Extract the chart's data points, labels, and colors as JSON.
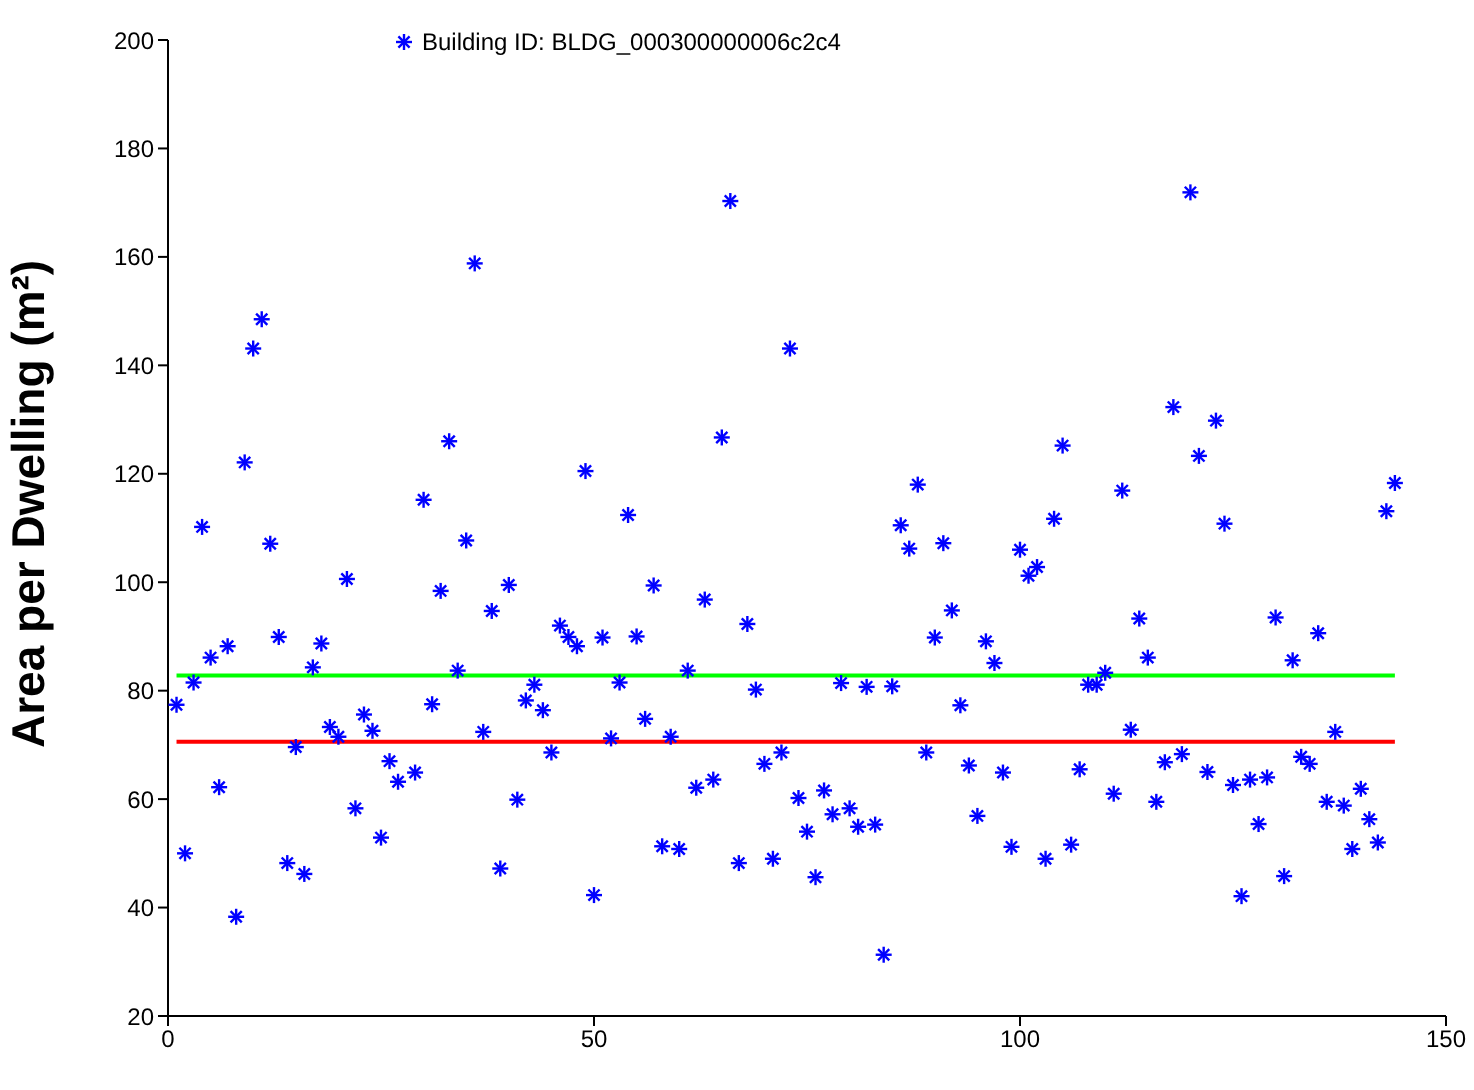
{
  "chart_data": {
    "type": "scatter",
    "ylabel": "Area per Dwelling (m²)",
    "xlim": [
      0,
      150
    ],
    "xticks": [
      0,
      50,
      100,
      150
    ],
    "ylim": [
      20,
      200
    ],
    "yticks": [
      20,
      40,
      60,
      80,
      100,
      120,
      140,
      160,
      180,
      200
    ],
    "grid": false,
    "legend": "top",
    "marker": "cross",
    "x": [
      1,
      2,
      3,
      4,
      5,
      6,
      7,
      8,
      9,
      10,
      11,
      12,
      13,
      14,
      15,
      16,
      17,
      18,
      19,
      20,
      21,
      22,
      23,
      24,
      25,
      26,
      27,
      28,
      29,
      30,
      31,
      32,
      33,
      34,
      35,
      36,
      37,
      38,
      39,
      40,
      41,
      42,
      43,
      44,
      45,
      46,
      47,
      48,
      49,
      50,
      51,
      52,
      53,
      54,
      55,
      56,
      57,
      58,
      59,
      60,
      61,
      62,
      63,
      64,
      65,
      66,
      67,
      68,
      69,
      70,
      71,
      72,
      73,
      74,
      75,
      76,
      77,
      78,
      79,
      80,
      81,
      82,
      83,
      84,
      85,
      86,
      87,
      88,
      89,
      90,
      91,
      92,
      93,
      94,
      95,
      96,
      97,
      98,
      99,
      100,
      101,
      102,
      103,
      104,
      105,
      106,
      107,
      108,
      109,
      110,
      111,
      112,
      113,
      114,
      115,
      116,
      117,
      118,
      119,
      120,
      121,
      122,
      123,
      124,
      125,
      126,
      127,
      128,
      129,
      130,
      131,
      132,
      133,
      134,
      135,
      136,
      137,
      138,
      139,
      140,
      141,
      142,
      143,
      144
    ],
    "series": [
      {
        "name": "Building ID: BLDG_000300000006c2c4",
        "color": "#0000ff",
        "values": [
          77.4,
          50.0,
          81.5,
          110.2,
          86.1,
          62.2,
          88.2,
          38.3,
          122.1,
          143.1,
          148.5,
          107.1,
          89.9,
          48.2,
          69.6,
          46.2,
          84.3,
          88.7,
          73.3,
          71.5,
          100.6,
          58.3,
          75.6,
          72.6,
          52.9,
          67.0,
          63.2,
          null,
          64.9,
          115.2,
          77.5,
          98.4,
          126.0,
          83.7,
          107.7,
          158.8,
          72.4,
          94.7,
          47.2,
          99.5,
          59.9,
          78.2,
          81.1,
          76.4,
          68.6,
          92.0,
          89.9,
          88.2,
          120.5,
          42.3,
          89.8,
          71.2,
          81.5,
          112.4,
          90.0,
          74.8,
          99.4,
          51.3,
          71.5,
          50.8,
          83.7,
          62.1,
          96.8,
          63.6,
          126.7,
          170.3,
          48.2,
          92.3,
          80.2,
          66.5,
          49.0,
          68.6,
          143.1,
          60.2,
          54.0,
          45.6,
          61.6,
          57.2,
          81.4,
          58.3,
          54.9,
          80.7,
          55.3,
          31.3,
          80.8,
          110.5,
          106.2,
          118.0,
          68.6,
          89.8,
          107.2,
          94.8,
          77.3,
          66.2,
          56.9,
          89.1,
          85.1,
          64.9,
          51.2,
          106.0,
          101.2,
          102.8,
          49.0,
          111.7,
          125.2,
          51.6,
          65.5,
          81.1,
          81.1,
          83.3,
          61.0,
          116.9,
          72.8,
          93.3,
          86.1,
          59.5,
          66.8,
          132.3,
          68.3,
          171.9,
          123.3,
          65.0,
          129.8,
          110.8,
          62.6,
          42.1,
          63.6,
          55.4,
          64.0,
          93.5,
          45.8,
          85.6,
          67.8,
          66.5,
          90.6,
          59.5,
          72.4,
          58.8,
          50.8,
          61.9,
          56.3,
          52.0,
          113.1,
          118.3
        ]
      }
    ],
    "ref_lines": [
      {
        "axis": "y",
        "value": 82.8,
        "color": "#00ff00"
      },
      {
        "axis": "y",
        "value": 70.6,
        "color": "#ff0000"
      }
    ]
  }
}
